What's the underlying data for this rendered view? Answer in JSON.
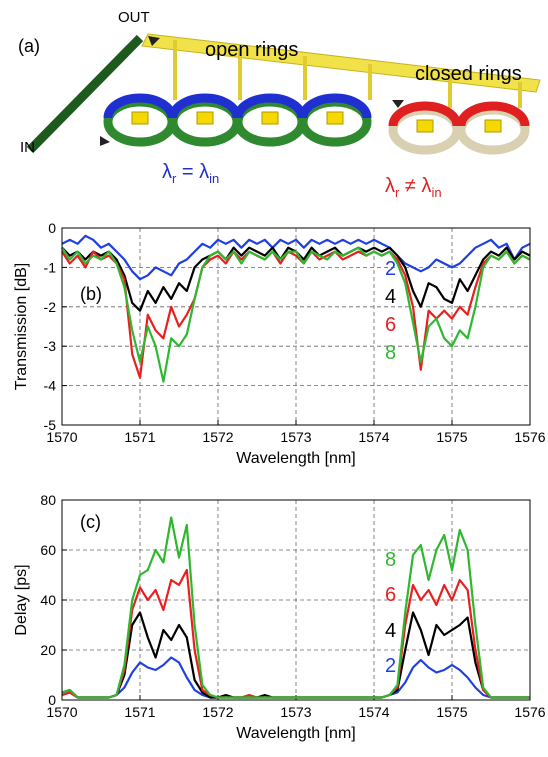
{
  "diagram": {
    "panel": "(a)",
    "out": "OUT",
    "in": "IN",
    "open": "open rings",
    "closed": "closed rings",
    "lambda_open": [
      "λ",
      "r",
      " = λ",
      "in"
    ],
    "lambda_closed": [
      "λ",
      "r",
      " ≠ λ",
      "in"
    ]
  },
  "chart_data": [
    {
      "type": "line",
      "label": "(b)",
      "x_label": "Wavelength [nm]",
      "y_label": "Transmission [dB]",
      "x": [
        1570.0,
        1570.1,
        1570.2,
        1570.3,
        1570.4,
        1570.5,
        1570.6,
        1570.7,
        1570.8,
        1570.9,
        1571.0,
        1571.1,
        1571.2,
        1571.3,
        1571.4,
        1571.5,
        1571.6,
        1571.7,
        1571.8,
        1571.9,
        1572.0,
        1572.1,
        1572.2,
        1572.3,
        1572.4,
        1572.5,
        1572.6,
        1572.7,
        1572.8,
        1572.9,
        1573.0,
        1573.1,
        1573.2,
        1573.3,
        1573.4,
        1573.5,
        1573.6,
        1573.7,
        1573.8,
        1573.9,
        1574.0,
        1574.1,
        1574.2,
        1574.3,
        1574.4,
        1574.5,
        1574.6,
        1574.7,
        1574.8,
        1574.9,
        1575.0,
        1575.1,
        1575.2,
        1575.3,
        1575.4,
        1575.5,
        1575.6,
        1575.7,
        1575.8,
        1575.9,
        1576.0
      ],
      "series": [
        {
          "name": "2",
          "color": "#1f3fe0",
          "values": [
            -0.4,
            -0.3,
            -0.4,
            -0.2,
            -0.3,
            -0.5,
            -0.4,
            -0.6,
            -0.8,
            -1.1,
            -1.3,
            -1.2,
            -1.0,
            -1.1,
            -1.2,
            -0.9,
            -0.8,
            -0.6,
            -0.4,
            -0.5,
            -0.3,
            -0.4,
            -0.3,
            -0.5,
            -0.3,
            -0.4,
            -0.3,
            -0.5,
            -0.3,
            -0.4,
            -0.3,
            -0.5,
            -0.3,
            -0.4,
            -0.3,
            -0.4,
            -0.3,
            -0.4,
            -0.3,
            -0.4,
            -0.3,
            -0.4,
            -0.5,
            -0.7,
            -0.9,
            -1.0,
            -1.1,
            -1.0,
            -0.8,
            -0.9,
            -1.0,
            -0.9,
            -0.7,
            -0.5,
            -0.4,
            -0.3,
            -0.5,
            -0.4,
            -0.8,
            -0.5,
            -0.4
          ]
        },
        {
          "name": "4",
          "color": "#000000",
          "values": [
            -0.5,
            -0.7,
            -0.6,
            -0.8,
            -0.6,
            -0.7,
            -0.6,
            -0.8,
            -1.2,
            -1.9,
            -2.1,
            -1.6,
            -1.9,
            -1.5,
            -1.8,
            -1.4,
            -1.6,
            -1.0,
            -0.8,
            -0.7,
            -0.6,
            -0.8,
            -0.5,
            -0.7,
            -0.5,
            -0.6,
            -0.7,
            -0.5,
            -0.8,
            -0.5,
            -0.6,
            -0.8,
            -0.5,
            -0.7,
            -0.6,
            -0.5,
            -0.7,
            -0.6,
            -0.5,
            -0.6,
            -0.5,
            -0.6,
            -0.5,
            -0.7,
            -1.0,
            -1.6,
            -2.0,
            -1.4,
            -1.5,
            -1.8,
            -1.9,
            -1.3,
            -1.6,
            -1.2,
            -0.8,
            -0.6,
            -0.7,
            -0.5,
            -0.8,
            -0.6,
            -0.7
          ]
        },
        {
          "name": "6",
          "color": "#e82020",
          "values": [
            -0.6,
            -0.9,
            -0.7,
            -1.0,
            -0.6,
            -0.8,
            -0.7,
            -0.9,
            -1.3,
            -3.2,
            -3.8,
            -2.2,
            -2.6,
            -2.8,
            -2.0,
            -2.5,
            -2.2,
            -1.8,
            -1.0,
            -0.8,
            -0.7,
            -0.9,
            -0.6,
            -0.8,
            -0.6,
            -0.7,
            -0.8,
            -0.6,
            -0.9,
            -0.6,
            -0.7,
            -0.9,
            -0.6,
            -0.8,
            -0.7,
            -0.6,
            -0.8,
            -0.7,
            -0.6,
            -0.7,
            -0.6,
            -0.7,
            -0.6,
            -0.8,
            -1.2,
            -2.0,
            -3.6,
            -2.1,
            -2.3,
            -2.1,
            -2.3,
            -2.0,
            -2.2,
            -1.5,
            -0.9,
            -0.7,
            -0.8,
            -0.6,
            -0.9,
            -0.7,
            -0.8
          ]
        },
        {
          "name": "8",
          "color": "#2fb82f",
          "values": [
            -0.5,
            -0.8,
            -0.6,
            -0.9,
            -0.7,
            -0.8,
            -0.6,
            -0.9,
            -1.5,
            -2.6,
            -3.4,
            -2.5,
            -3.0,
            -3.9,
            -2.8,
            -3.0,
            -2.7,
            -1.8,
            -1.0,
            -0.7,
            -0.6,
            -0.8,
            -0.6,
            -0.9,
            -0.6,
            -0.7,
            -0.8,
            -0.6,
            -0.8,
            -0.6,
            -0.6,
            -0.9,
            -0.6,
            -0.7,
            -0.8,
            -0.6,
            -0.7,
            -0.6,
            -0.5,
            -0.7,
            -0.6,
            -0.7,
            -0.6,
            -0.9,
            -1.4,
            -2.4,
            -3.4,
            -2.5,
            -2.3,
            -2.8,
            -3.0,
            -2.6,
            -2.8,
            -2.0,
            -1.0,
            -0.7,
            -0.8,
            -0.6,
            -0.9,
            -0.7,
            -0.8
          ]
        }
      ],
      "xlim": [
        1570,
        1576
      ],
      "xticks": [
        1570,
        1571,
        1572,
        1573,
        1574,
        1575,
        1576
      ],
      "ylim": [
        -5,
        0
      ],
      "yticks": [
        -5,
        -4,
        -3,
        -2,
        -1,
        0
      ],
      "grid": true
    },
    {
      "type": "line",
      "label": "(c)",
      "x_label": "Wavelength [nm]",
      "y_label": "Delay [ps]",
      "x": [
        1570.0,
        1570.1,
        1570.2,
        1570.3,
        1570.4,
        1570.5,
        1570.6,
        1570.7,
        1570.8,
        1570.9,
        1571.0,
        1571.1,
        1571.2,
        1571.3,
        1571.4,
        1571.5,
        1571.6,
        1571.7,
        1571.8,
        1571.9,
        1572.0,
        1572.1,
        1572.2,
        1572.3,
        1572.4,
        1572.5,
        1572.6,
        1572.7,
        1572.8,
        1572.9,
        1573.0,
        1573.1,
        1573.2,
        1573.3,
        1573.4,
        1573.5,
        1573.6,
        1573.7,
        1573.8,
        1573.9,
        1574.0,
        1574.1,
        1574.2,
        1574.3,
        1574.4,
        1574.5,
        1574.6,
        1574.7,
        1574.8,
        1574.9,
        1575.0,
        1575.1,
        1575.2,
        1575.3,
        1575.4,
        1575.5,
        1575.6,
        1575.7,
        1575.8,
        1575.9,
        1576.0
      ],
      "series": [
        {
          "name": "2",
          "color": "#1f3fe0",
          "values": [
            2,
            3,
            1,
            1,
            1,
            1,
            1,
            2,
            5,
            11,
            15,
            13,
            12,
            14,
            17,
            15,
            9,
            4,
            2,
            1,
            1,
            1,
            1,
            1,
            1,
            1,
            1,
            1,
            1,
            1,
            1,
            1,
            1,
            1,
            1,
            1,
            1,
            1,
            1,
            1,
            1,
            1,
            2,
            3,
            7,
            13,
            16,
            13,
            11,
            12,
            14,
            12,
            9,
            5,
            2,
            1,
            1,
            1,
            1,
            1,
            1
          ]
        },
        {
          "name": "4",
          "color": "#000000",
          "values": [
            3,
            4,
            1,
            1,
            1,
            1,
            1,
            2,
            10,
            30,
            35,
            25,
            17,
            28,
            24,
            30,
            25,
            8,
            3,
            1,
            1,
            2,
            1,
            1,
            1,
            1,
            2,
            1,
            1,
            1,
            1,
            1,
            1,
            1,
            1,
            1,
            1,
            1,
            1,
            1,
            1,
            1,
            2,
            4,
            20,
            35,
            28,
            18,
            30,
            26,
            28,
            30,
            33,
            15,
            4,
            1,
            1,
            1,
            1,
            1,
            1
          ]
        },
        {
          "name": "6",
          "color": "#e82020",
          "values": [
            2,
            3,
            1,
            1,
            1,
            1,
            1,
            2,
            12,
            36,
            45,
            40,
            44,
            36,
            48,
            46,
            52,
            20,
            4,
            2,
            1,
            1,
            1,
            1,
            2,
            1,
            1,
            1,
            1,
            1,
            1,
            1,
            1,
            1,
            1,
            1,
            1,
            1,
            1,
            1,
            1,
            1,
            2,
            5,
            30,
            46,
            40,
            44,
            38,
            46,
            40,
            48,
            44,
            20,
            4,
            1,
            1,
            1,
            1,
            1,
            1
          ]
        },
        {
          "name": "8",
          "color": "#2fb82f",
          "values": [
            3,
            4,
            1,
            1,
            1,
            1,
            1,
            2,
            14,
            40,
            50,
            52,
            60,
            55,
            73,
            57,
            70,
            30,
            6,
            2,
            1,
            1,
            1,
            1,
            1,
            1,
            1,
            1,
            1,
            1,
            1,
            1,
            1,
            1,
            1,
            1,
            1,
            1,
            1,
            1,
            1,
            1,
            2,
            6,
            35,
            58,
            62,
            48,
            60,
            66,
            52,
            68,
            60,
            30,
            5,
            1,
            1,
            1,
            1,
            1,
            1
          ]
        }
      ],
      "xlim": [
        1570,
        1576
      ],
      "xticks": [
        1570,
        1571,
        1572,
        1573,
        1574,
        1575,
        1576
      ],
      "ylim": [
        0,
        80
      ],
      "yticks": [
        0,
        20,
        40,
        60,
        80
      ],
      "grid": true
    }
  ]
}
